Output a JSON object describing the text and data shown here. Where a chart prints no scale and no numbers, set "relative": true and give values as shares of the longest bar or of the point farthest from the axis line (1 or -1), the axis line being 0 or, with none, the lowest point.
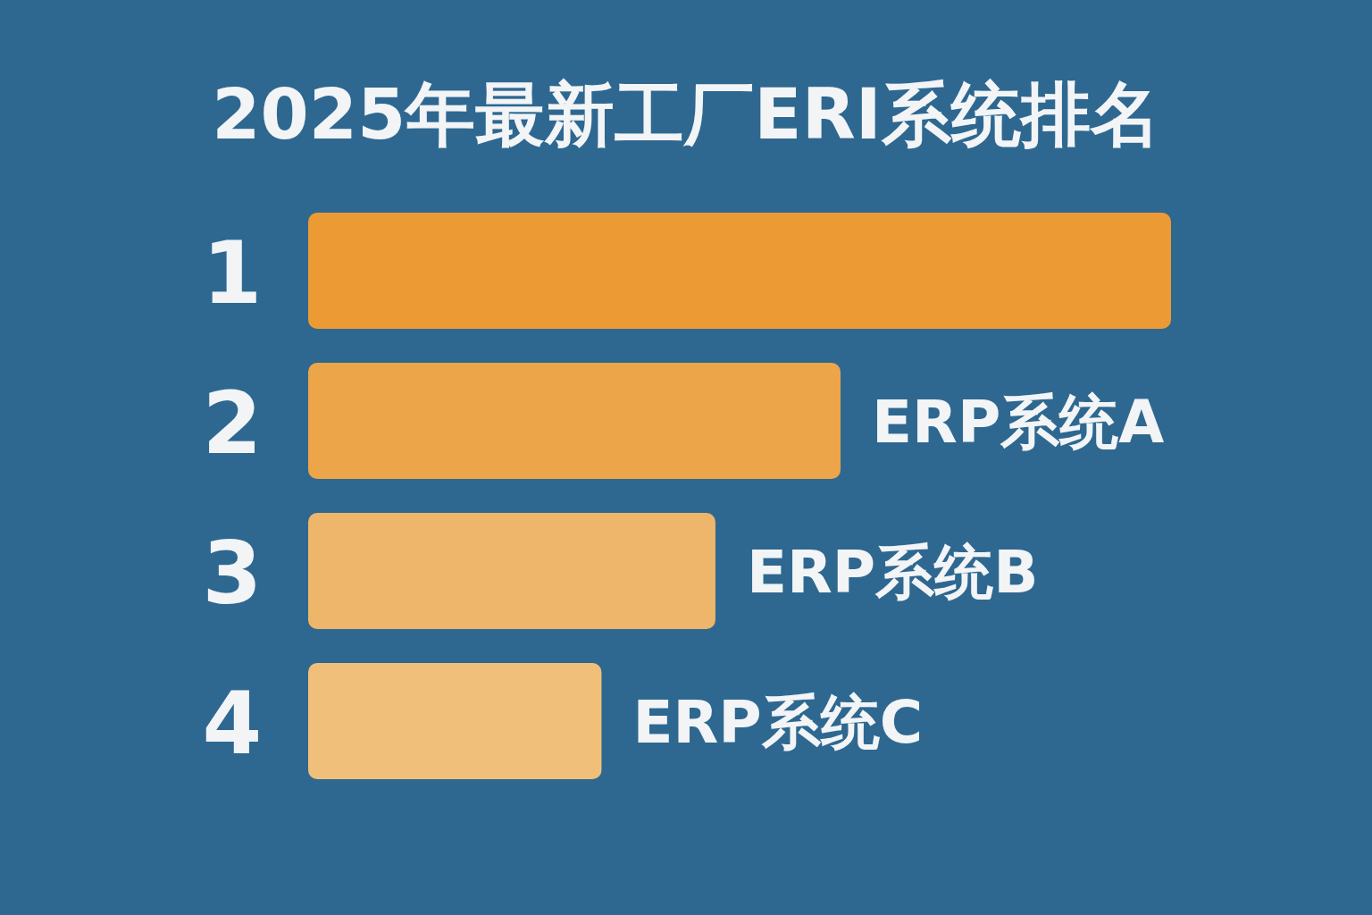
{
  "chart_data": {
    "type": "bar",
    "orientation": "horizontal",
    "relative": true,
    "title": "2025年最新工厂ERI系统排名",
    "categories": [
      "1",
      "2",
      "3",
      "4"
    ],
    "values": [
      1,
      0.617,
      0.472,
      0.34
    ],
    "colors": [
      "#ec9a33",
      "#eda54a",
      "#eeb66a",
      "#f0c07a"
    ],
    "annotations": [
      {
        "text": "ERP系统A",
        "x": 0.617,
        "y": "2"
      },
      {
        "text": "ERP系统B",
        "x": 0.472,
        "y": "3"
      },
      {
        "text": "ERP系统C",
        "x": 0.34,
        "y": "4"
      }
    ]
  }
}
